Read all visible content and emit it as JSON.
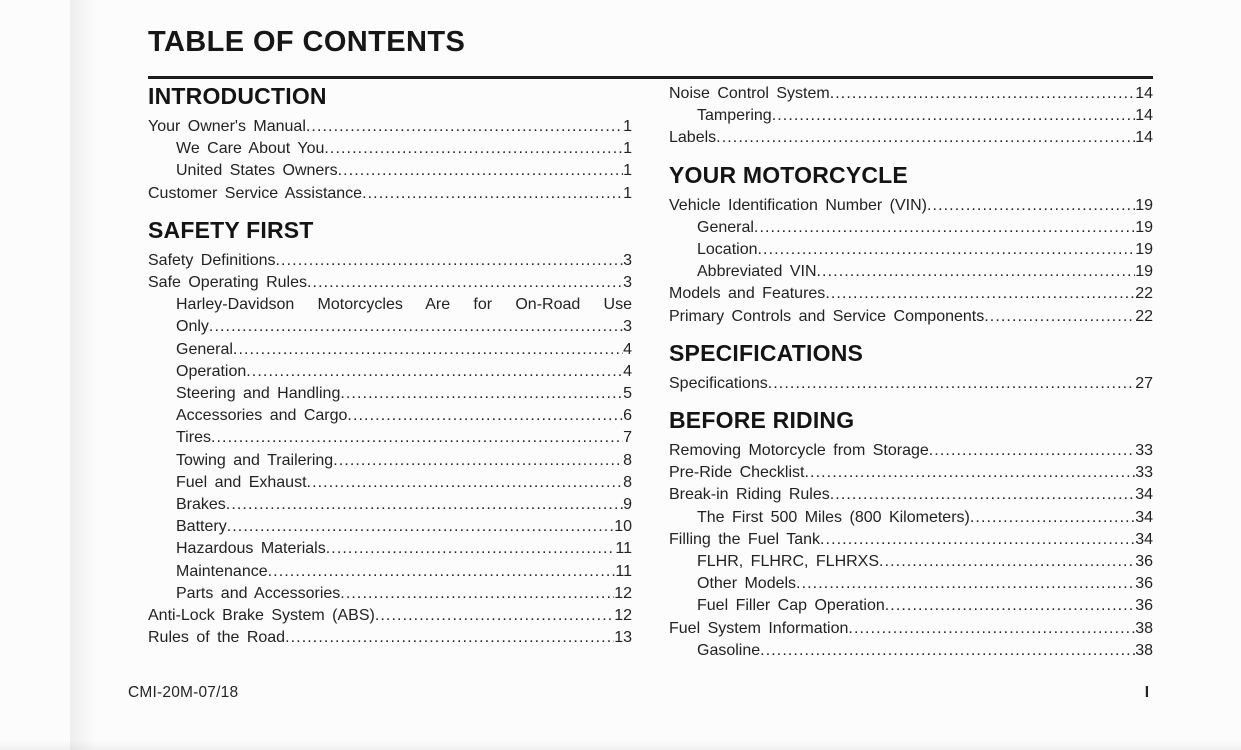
{
  "page": {
    "title": "TABLE OF CONTENTS",
    "footer": {
      "doc_code": "CMI-20M-07/18",
      "page_number": "I"
    },
    "colors": {
      "paper": "#fcfcfc",
      "ink": "#1e1e1e"
    }
  },
  "toc": {
    "left_column": [
      {
        "heading": "INTRODUCTION",
        "entries": [
          {
            "label": "Your Owner's Manual",
            "page": "1",
            "indent": 0
          },
          {
            "label": "We Care About You",
            "page": "1",
            "indent": 1
          },
          {
            "label": "United States Owners",
            "page": "1",
            "indent": 1
          },
          {
            "label": "Customer Service Assistance",
            "page": "1",
            "indent": 0
          }
        ]
      },
      {
        "heading": "SAFETY FIRST",
        "entries": [
          {
            "label": "Safety Definitions",
            "page": "3",
            "indent": 0
          },
          {
            "label": "Safe Operating Rules",
            "page": "3",
            "indent": 0
          },
          {
            "text": "Harley-Davidson Motorcycles Are for On-Road Use",
            "indent": 1
          },
          {
            "label": "Only",
            "page": "3",
            "indent": 1
          },
          {
            "label": "General",
            "page": "4",
            "indent": 1
          },
          {
            "label": "Operation",
            "page": "4",
            "indent": 1
          },
          {
            "label": "Steering and Handling",
            "page": "5",
            "indent": 1
          },
          {
            "label": "Accessories and Cargo",
            "page": "6",
            "indent": 1
          },
          {
            "label": "Tires",
            "page": "7",
            "indent": 1
          },
          {
            "label": "Towing and Trailering",
            "page": "8",
            "indent": 1
          },
          {
            "label": "Fuel and Exhaust",
            "page": "8",
            "indent": 1
          },
          {
            "label": "Brakes",
            "page": "9",
            "indent": 1
          },
          {
            "label": "Battery",
            "page": "10",
            "indent": 1
          },
          {
            "label": "Hazardous Materials",
            "page": "11",
            "indent": 1
          },
          {
            "label": "Maintenance",
            "page": "11",
            "indent": 1
          },
          {
            "label": "Parts and Accessories",
            "page": "12",
            "indent": 1
          },
          {
            "label": "Anti-Lock Brake System (ABS)",
            "page": "12",
            "indent": 0
          },
          {
            "label": "Rules of the Road",
            "page": "13",
            "indent": 0
          }
        ]
      }
    ],
    "right_column": [
      {
        "heading": null,
        "entries": [
          {
            "label": "Noise Control System",
            "page": "14",
            "indent": 0
          },
          {
            "label": "Tampering",
            "page": "14",
            "indent": 1
          },
          {
            "label": "Labels",
            "page": "14",
            "indent": 0
          }
        ]
      },
      {
        "heading": "YOUR MOTORCYCLE",
        "entries": [
          {
            "label": "Vehicle Identification Number (VIN)",
            "page": "19",
            "indent": 0
          },
          {
            "label": "General",
            "page": "19",
            "indent": 1
          },
          {
            "label": "Location",
            "page": "19",
            "indent": 1
          },
          {
            "label": "Abbreviated VIN",
            "page": "19",
            "indent": 1
          },
          {
            "label": "Models and Features",
            "page": "22",
            "indent": 0
          },
          {
            "label": "Primary Controls and Service Components",
            "page": "22",
            "indent": 0
          }
        ]
      },
      {
        "heading": "SPECIFICATIONS",
        "entries": [
          {
            "label": "Specifications",
            "page": "27",
            "indent": 0
          }
        ]
      },
      {
        "heading": "BEFORE RIDING",
        "entries": [
          {
            "label": "Removing Motorcycle from Storage",
            "page": "33",
            "indent": 0
          },
          {
            "label": "Pre-Ride Checklist",
            "page": "33",
            "indent": 0
          },
          {
            "label": "Break-in Riding Rules",
            "page": "34",
            "indent": 0
          },
          {
            "label": "The First 500 Miles (800 Kilometers)",
            "page": "34",
            "indent": 1
          },
          {
            "label": "Filling the Fuel Tank",
            "page": "34",
            "indent": 0
          },
          {
            "label": "FLHR, FLHRC, FLHRXS",
            "page": "36",
            "indent": 1
          },
          {
            "label": "Other Models",
            "page": "36",
            "indent": 1
          },
          {
            "label": "Fuel Filler Cap Operation",
            "page": "36",
            "indent": 1
          },
          {
            "label": "Fuel System Information",
            "page": "38",
            "indent": 0
          },
          {
            "label": "Gasoline",
            "page": "38",
            "indent": 1
          }
        ]
      }
    ]
  }
}
